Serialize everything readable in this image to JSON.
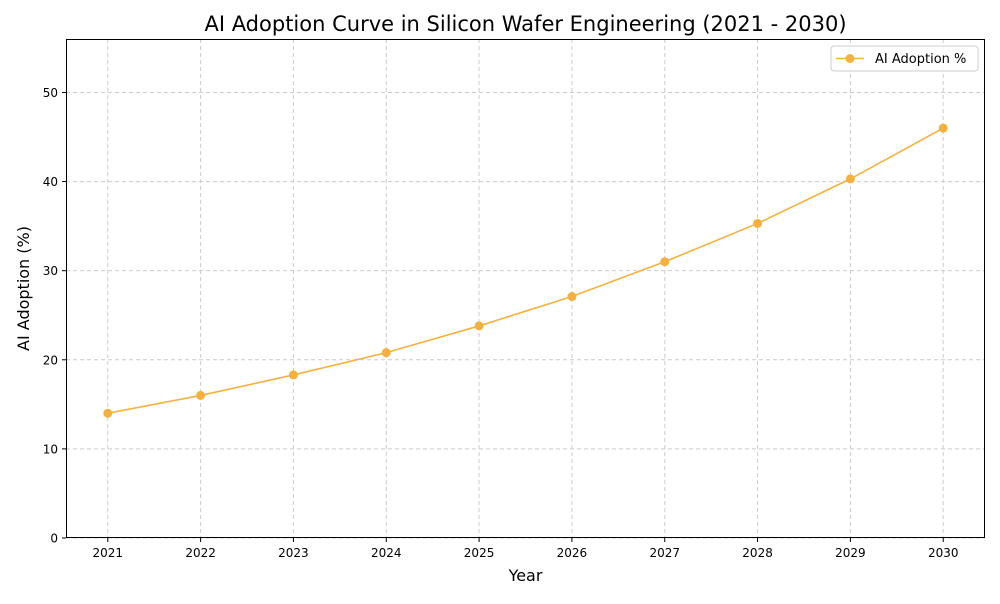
{
  "chart_data": {
    "type": "line",
    "title": "AI Adoption Curve in Silicon Wafer Engineering (2021 - 2030)",
    "xlabel": "Year",
    "ylabel": "AI Adoption (%)",
    "x": [
      2021,
      2022,
      2023,
      2024,
      2025,
      2026,
      2027,
      2028,
      2029,
      2030
    ],
    "x_tick_labels": [
      "2021",
      "2022",
      "2023",
      "2024",
      "2025",
      "2026",
      "2027",
      "2028",
      "2029",
      "2030"
    ],
    "y_ticks": [
      0,
      10,
      20,
      30,
      40,
      50
    ],
    "y_tick_labels": [
      "0",
      "10",
      "20",
      "30",
      "40",
      "50"
    ],
    "xlim": [
      2020.55,
      2030.45
    ],
    "ylim": [
      0,
      56
    ],
    "grid": true,
    "legend_position": "top-right",
    "series": [
      {
        "name": "AI Adoption %",
        "color": "#f4b142",
        "marker": "circle",
        "values": [
          14.0,
          16.0,
          18.3,
          20.8,
          23.8,
          27.1,
          31.0,
          35.3,
          40.3,
          46.0
        ]
      }
    ]
  }
}
